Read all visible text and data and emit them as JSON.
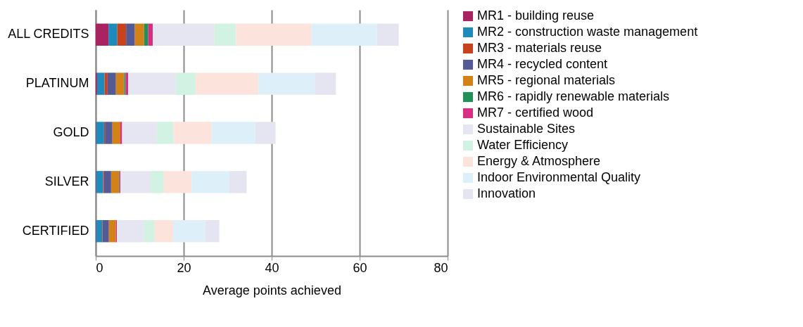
{
  "chart_data": {
    "type": "bar",
    "orientation": "horizontal",
    "stacked": true,
    "xlabel": "Average points achieved",
    "categories": [
      "ALL CREDITS",
      "PLATINUM",
      "GOLD",
      "SILVER",
      "CERTIFIED"
    ],
    "xlim": [
      0,
      80
    ],
    "xticks": [
      0,
      20,
      40,
      60,
      80
    ],
    "grid": "x",
    "legend": "right",
    "series": [
      {
        "name": "MR1 - building reuse",
        "color": "#a8235f",
        "values": [
          2.9,
          0.3,
          0.1,
          0.1,
          0.1
        ]
      },
      {
        "name": "MR2 - construction waste management",
        "color": "#1f8bbd",
        "values": [
          2.0,
          1.7,
          1.8,
          1.6,
          1.4
        ]
      },
      {
        "name": "MR3 - materials reuse",
        "color": "#c8421e",
        "values": [
          2.0,
          0.7,
          0.2,
          0.2,
          0.1
        ]
      },
      {
        "name": "MR4 - recycled content",
        "color": "#535a96",
        "values": [
          2.0,
          1.9,
          1.7,
          1.6,
          1.4
        ]
      },
      {
        "name": "MR5 - regional materials",
        "color": "#d28219",
        "values": [
          2.1,
          1.9,
          1.8,
          1.8,
          1.6
        ]
      },
      {
        "name": "MR6 - rapidly renewable materials",
        "color": "#229158",
        "values": [
          0.9,
          0.3,
          null,
          0.1,
          null
        ]
      },
      {
        "name": "MR7 - certified wood",
        "color": "#d62f83",
        "values": [
          1.1,
          0.6,
          0.4,
          0.2,
          0.2
        ]
      },
      {
        "name": "Sustainable Sites",
        "color": "#e6e6f2",
        "values": [
          14.0,
          10.8,
          7.9,
          6.9,
          6.1
        ]
      },
      {
        "name": "Water Efficiency",
        "color": "#d2f2e4",
        "values": [
          4.9,
          4.5,
          3.8,
          3.0,
          2.5
        ]
      },
      {
        "name": "Energy & Atmosphere",
        "color": "#fce3dc",
        "values": [
          17.1,
          14.3,
          8.6,
          6.3,
          4.2
        ]
      },
      {
        "name": "Indoor Environmental Quality",
        "color": "#ddeff9",
        "values": [
          14.9,
          12.8,
          10.0,
          8.6,
          7.3
        ]
      },
      {
        "name": "Innovation",
        "color": "#e5e5f1",
        "values": [
          5.0,
          4.8,
          4.6,
          3.9,
          3.2
        ]
      }
    ]
  }
}
